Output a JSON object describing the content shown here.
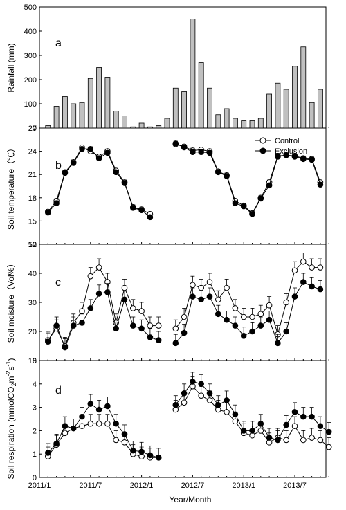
{
  "chart_data": [
    {
      "type": "bar",
      "panel": "a",
      "ylabel": "Rainfall (mm)",
      "ylim": [
        0,
        500
      ],
      "yticks": [
        0,
        100,
        200,
        300,
        400,
        500
      ],
      "x": [
        "2011/2",
        "2011/3",
        "2011/4",
        "2011/5",
        "2011/6",
        "2011/7",
        "2011/8",
        "2011/9",
        "2011/10",
        "2011/11",
        "2011/12",
        "2012/1",
        "2012/2",
        "2012/3",
        "2012/4",
        "2012/5",
        "2012/6",
        "2012/7",
        "2012/8",
        "2012/9",
        "2012/10",
        "2012/11",
        "2012/12",
        "2013/1",
        "2013/2",
        "2013/3",
        "2013/4",
        "2013/5",
        "2013/6",
        "2013/7",
        "2013/8",
        "2013/9",
        "2013/10",
        "2013/11"
      ],
      "values": [
        10,
        90,
        130,
        100,
        105,
        205,
        250,
        210,
        70,
        50,
        5,
        20,
        5,
        10,
        40,
        165,
        150,
        450,
        270,
        165,
        55,
        80,
        40,
        30,
        30,
        40,
        140,
        185,
        160,
        255,
        335,
        105,
        160,
        null
      ],
      "colors": {
        "bar": "#c0c0c0"
      }
    },
    {
      "type": "line",
      "panel": "b",
      "ylabel": "Soil temperature（℃）",
      "ylim": [
        12,
        27
      ],
      "yticks": [
        12,
        15,
        18,
        21,
        24,
        27
      ],
      "legend_position": "top-right",
      "x": [
        "2011/2",
        "2011/3",
        "2011/4",
        "2011/5",
        "2011/6",
        "2011/7",
        "2011/8",
        "2011/9",
        "2011/10",
        "2011/11",
        "2011/12",
        "2012/1",
        "2012/2",
        "2012/3",
        "2012/4",
        "2012/5",
        "2012/6",
        "2012/7",
        "2012/8",
        "2012/9",
        "2012/10",
        "2012/11",
        "2012/12",
        "2013/1",
        "2013/2",
        "2013/3",
        "2013/4",
        "2013/5",
        "2013/6",
        "2013/7",
        "2013/8",
        "2013/9",
        "2013/10",
        "2013/11"
      ],
      "series": [
        {
          "name": "Control",
          "marker": "open-circle",
          "values": [
            16.2,
            17.6,
            21.3,
            22.6,
            24.5,
            24.0,
            23.3,
            24.0,
            21.5,
            20.0,
            16.8,
            16.5,
            15.9,
            null,
            null,
            24.9,
            24.6,
            24.1,
            24.2,
            24.0,
            21.4,
            20.9,
            17.6,
            17.0,
            16.0,
            18.0,
            20.0,
            23.4,
            23.5,
            23.4,
            23.1,
            23.0,
            20.0,
            null
          ]
        },
        {
          "name": "Exclusion",
          "marker": "filled-circle",
          "values": [
            16.1,
            17.3,
            21.2,
            22.5,
            24.3,
            24.3,
            23.1,
            23.8,
            21.3,
            19.9,
            16.7,
            16.4,
            15.5,
            null,
            null,
            25.0,
            24.5,
            23.9,
            23.9,
            23.8,
            21.3,
            20.8,
            17.3,
            16.9,
            15.9,
            17.9,
            19.6,
            23.3,
            23.5,
            23.3,
            23.0,
            22.9,
            19.7,
            null
          ]
        }
      ]
    },
    {
      "type": "line",
      "panel": "c",
      "ylabel": "Soil moisture（Vol%）",
      "ylim": [
        10,
        50
      ],
      "yticks": [
        10,
        20,
        30,
        40,
        50
      ],
      "x": [
        "2011/2",
        "2011/3",
        "2011/4",
        "2011/5",
        "2011/6",
        "2011/7",
        "2011/8",
        "2011/9",
        "2011/10",
        "2011/11",
        "2011/12",
        "2012/1",
        "2012/2",
        "2012/3",
        "2012/4",
        "2012/5",
        "2012/6",
        "2012/7",
        "2012/8",
        "2012/9",
        "2012/10",
        "2012/11",
        "2012/12",
        "2013/1",
        "2013/2",
        "2013/3",
        "2013/4",
        "2013/5",
        "2013/6",
        "2013/7",
        "2013/8",
        "2013/9",
        "2013/10",
        "2013/11"
      ],
      "series": [
        {
          "name": "Control",
          "marker": "open-circle",
          "values": [
            17,
            21,
            15,
            23,
            27,
            39,
            42,
            37,
            23,
            35,
            28,
            27,
            22,
            22,
            null,
            21,
            25,
            36,
            35,
            37,
            31,
            35,
            28,
            25,
            25,
            26,
            29,
            19,
            30,
            41,
            44,
            42,
            42,
            null
          ]
        },
        {
          "name": "Exclusion",
          "marker": "filled-circle",
          "values": [
            16.5,
            22,
            14.5,
            22,
            23,
            28,
            33,
            33.5,
            21,
            31,
            22,
            21,
            18,
            17,
            null,
            16,
            19.5,
            32,
            31,
            32,
            26,
            24,
            22,
            18.5,
            20,
            22,
            24,
            16,
            20,
            32,
            37,
            35.5,
            34.5,
            null
          ]
        }
      ],
      "error_bar": 3
    },
    {
      "type": "line",
      "panel": "d",
      "ylabel": "Soil respiration (mmolCO2m-2s-1)",
      "xlabel": "Year/Month",
      "ylim": [
        0,
        5
      ],
      "yticks": [
        0,
        1,
        2,
        3,
        4,
        5
      ],
      "x_tick_labels": [
        "2011/1",
        "2011/7",
        "2012/1",
        "2012/7",
        "2013/1",
        "2013/7"
      ],
      "x": [
        "2011/2",
        "2011/3",
        "2011/4",
        "2011/5",
        "2011/6",
        "2011/7",
        "2011/8",
        "2011/9",
        "2011/10",
        "2011/11",
        "2011/12",
        "2012/1",
        "2012/2",
        "2012/3",
        "2012/4",
        "2012/5",
        "2012/6",
        "2012/7",
        "2012/8",
        "2012/9",
        "2012/10",
        "2012/11",
        "2012/12",
        "2013/1",
        "2013/2",
        "2013/3",
        "2013/4",
        "2013/5",
        "2013/6",
        "2013/7",
        "2013/8",
        "2013/9",
        "2013/10",
        "2013/11"
      ],
      "series": [
        {
          "name": "Control",
          "marker": "open-circle",
          "values": [
            0.9,
            1.4,
            1.9,
            2.1,
            2.2,
            2.3,
            2.3,
            2.3,
            1.6,
            1.5,
            1.0,
            0.9,
            0.85,
            0.85,
            null,
            2.9,
            3.2,
            3.9,
            3.5,
            3.3,
            2.9,
            2.8,
            2.4,
            1.9,
            1.8,
            2.0,
            1.5,
            1.7,
            1.6,
            2.2,
            1.6,
            1.7,
            1.6,
            1.3
          ]
        },
        {
          "name": "Exclusion",
          "marker": "filled-circle",
          "values": [
            1.05,
            1.45,
            2.2,
            2.1,
            2.6,
            3.15,
            2.9,
            3.05,
            2.3,
            1.85,
            1.15,
            1.1,
            0.95,
            0.85,
            null,
            3.1,
            3.6,
            4.1,
            4.0,
            3.6,
            3.1,
            3.3,
            2.7,
            2.0,
            2.0,
            2.3,
            1.7,
            1.6,
            2.25,
            2.8,
            2.6,
            2.6,
            2.2,
            1.95
          ]
        }
      ],
      "error_bar": 0.4
    }
  ],
  "legend": {
    "control_label": "Control",
    "exclusion_label": "Exclusion"
  },
  "panel_letters": [
    "a",
    "b",
    "c",
    "d"
  ],
  "axis_titles": {
    "rainfall": "Rainfall (mm)",
    "temperature": "Soil temperature（℃）",
    "moisture": "Soil moisture（Vol%）",
    "respiration_main": "Soil respiration (mmolCO",
    "respiration_sub2": "2",
    "respiration_m": "m",
    "respiration_sup_m": "-2",
    "respiration_s": "s",
    "respiration_sup_s": "-1",
    "respiration_close": ")",
    "x_title": "Year/Month"
  }
}
